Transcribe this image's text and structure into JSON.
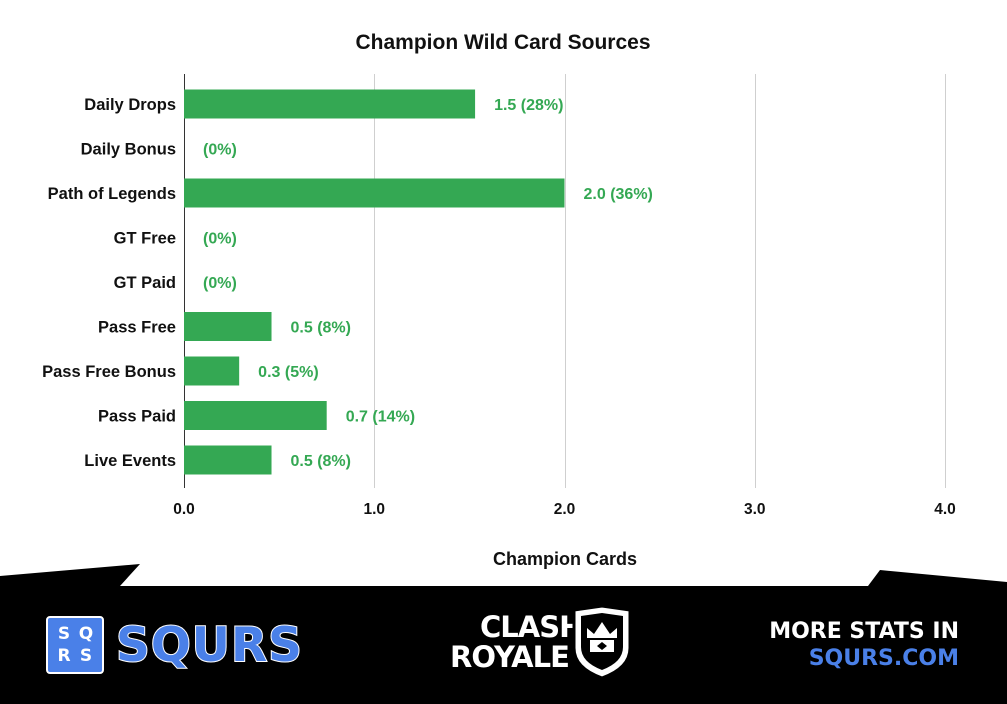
{
  "chart_data": {
    "type": "bar",
    "orientation": "horizontal",
    "title": "Champion Wild Card Sources",
    "xlabel": "Champion Cards",
    "ylabel": "",
    "xlim": [
      0,
      4
    ],
    "xticks": [
      "0.0",
      "1.0",
      "2.0",
      "3.0",
      "4.0"
    ],
    "grid": true,
    "categories": [
      "Daily Drops",
      "Daily Bonus",
      "Path of Legends",
      "GT Free",
      "GT Paid",
      "Pass Free",
      "Pass Free Bonus",
      "Pass Paid",
      "Live Events"
    ],
    "values": [
      1.53,
      0,
      2.0,
      0,
      0,
      0.46,
      0.29,
      0.75,
      0.46
    ],
    "data_labels": [
      "1.5 (28%)",
      "(0%)",
      "2.0 (36%)",
      "(0%)",
      "(0%)",
      "0.5 (8%)",
      "0.3 (5%)",
      "0.7 (14%)",
      "0.5 (8%)"
    ],
    "bar_color": "#34a853",
    "label_color": "#34a853"
  },
  "footer": {
    "squrs_letters": [
      "S",
      "Q",
      "R",
      "S"
    ],
    "squrs_word": "SQURS",
    "game_logo_line1": "CLASH",
    "game_logo_line2": "ROYALE",
    "promo_line1": "MORE STATS IN",
    "promo_line2": "SQURS.COM",
    "brand_color": "#4a80e8"
  }
}
